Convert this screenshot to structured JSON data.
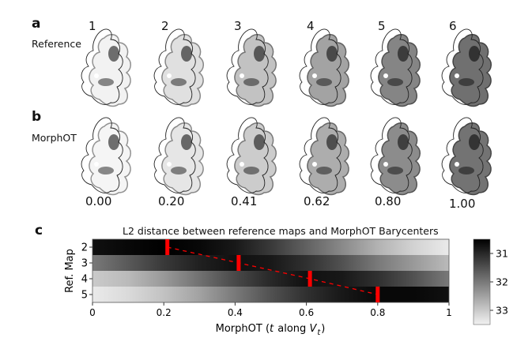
{
  "panels": {
    "a": "a",
    "b": "b",
    "c": "c"
  },
  "row_a_label": "Reference",
  "row_b_label": "MorphOT",
  "reference_labels": [
    "1",
    "2",
    "3",
    "4",
    "5",
    "6"
  ],
  "morphot_labels": [
    "0.00",
    "0.20",
    "0.41",
    "0.62",
    "0.80",
    "1.00"
  ],
  "morphot_shades": [
    0.96,
    0.9,
    0.8,
    0.68,
    0.55,
    0.45
  ],
  "reference_shades": [
    0.95,
    0.88,
    0.76,
    0.64,
    0.52,
    0.44
  ],
  "chart_data": {
    "type": "heatmap",
    "title": "L2 distance between reference maps and MorphOT Barycenters",
    "xlabel": "MorphOT (t along V_t)",
    "xlabel_parts": {
      "prefix": "MorphOT (",
      "t": "t",
      "mid": " along ",
      "V": "V",
      "sub": "t",
      "suffix": ")"
    },
    "ylabel": "Ref. Map",
    "x_ticks": [
      "0",
      "0.2",
      "0.4",
      "0.6",
      "0.8",
      "1"
    ],
    "xlim": [
      0,
      1
    ],
    "rows": [
      "2",
      "3",
      "4",
      "5"
    ],
    "t": [
      0,
      0.1,
      0.2,
      0.3,
      0.4,
      0.5,
      0.6,
      0.7,
      0.8,
      0.9,
      1.0
    ],
    "values": [
      [
        30.7,
        30.6,
        30.5,
        30.6,
        30.8,
        31.2,
        31.7,
        32.2,
        32.7,
        33.1,
        33.4
      ],
      [
        32.0,
        31.6,
        31.2,
        30.9,
        30.7,
        30.8,
        31.1,
        31.5,
        32.0,
        32.4,
        32.8
      ],
      [
        33.0,
        32.8,
        32.4,
        31.9,
        31.4,
        31.0,
        30.7,
        30.8,
        31.1,
        31.5,
        32.0
      ],
      [
        33.4,
        33.2,
        32.9,
        32.5,
        32.0,
        31.5,
        31.1,
        30.8,
        30.6,
        30.6,
        30.7
      ]
    ],
    "minima_t": [
      0.21,
      0.41,
      0.61,
      0.8
    ],
    "colorbar": {
      "ticks": [
        "31",
        "32",
        "33"
      ],
      "range": [
        30.5,
        33.5
      ]
    },
    "marker_color": "#ff0000"
  }
}
